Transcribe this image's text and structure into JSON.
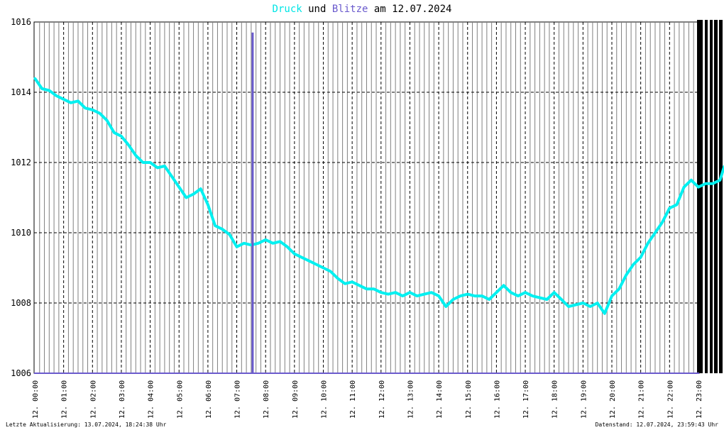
{
  "title": {
    "part1": "Druck",
    "part2": " und ",
    "part3": "Blitze",
    "part4": " am 12.07.2024"
  },
  "colors": {
    "druck": "#00f0f0",
    "blitze": "#6a5acd",
    "grid": "#000000"
  },
  "footer": {
    "left": "Letzte Aktualisierung: 13.07.2024, 18:24:38 Uhr",
    "right": "Datenstand: 12.07.2024, 23:59:43 Uhr"
  },
  "chart_data": {
    "type": "line",
    "title": "Druck und Blitze am 12.07.2024",
    "xlabel": "",
    "ylabel": "",
    "ylim": [
      1006,
      1016
    ],
    "xlim_hours": [
      0,
      24
    ],
    "y_ticks": [
      "1006",
      "1008",
      "1010",
      "1012",
      "1014",
      "1016"
    ],
    "x_ticks": [
      "12. 00:00",
      "12. 01:00",
      "12. 02:00",
      "12. 03:00",
      "12. 04:00",
      "12. 05:00",
      "12. 06:00",
      "12. 07:00",
      "12. 08:00",
      "12. 09:00",
      "12. 10:00",
      "12. 11:00",
      "12. 12:00",
      "12. 13:00",
      "12. 14:00",
      "12. 15:00",
      "12. 16:00",
      "12. 17:00",
      "12. 18:00",
      "12. 19:00",
      "12. 20:00",
      "12. 21:00",
      "12. 22:00",
      "12. 23:00"
    ],
    "grid": true,
    "series": [
      {
        "name": "Druck",
        "x": [
          0.0,
          0.25,
          0.5,
          0.75,
          1.0,
          1.25,
          1.5,
          1.75,
          2.0,
          2.25,
          2.5,
          2.75,
          3.0,
          3.25,
          3.5,
          3.75,
          4.0,
          4.25,
          4.5,
          4.75,
          5.0,
          5.25,
          5.5,
          5.75,
          6.0,
          6.25,
          6.5,
          6.75,
          7.0,
          7.25,
          7.5,
          7.75,
          8.0,
          8.25,
          8.5,
          8.75,
          9.0,
          9.25,
          9.5,
          9.75,
          10.0,
          10.25,
          10.5,
          10.75,
          11.0,
          11.25,
          11.5,
          11.75,
          12.0,
          12.25,
          12.5,
          12.75,
          13.0,
          13.25,
          13.5,
          13.75,
          14.0,
          14.25,
          14.5,
          14.75,
          15.0,
          15.25,
          15.5,
          15.75,
          16.0,
          16.25,
          16.5,
          16.75,
          17.0,
          17.25,
          17.5,
          17.75,
          18.0,
          18.25,
          18.5,
          18.75,
          19.0,
          19.25,
          19.5,
          19.75,
          20.0,
          20.25,
          20.5,
          20.75,
          21.0,
          21.25,
          21.5,
          21.75,
          22.0,
          22.25,
          22.5,
          22.75,
          23.0,
          23.25,
          23.5,
          23.75,
          23.9
        ],
        "y": [
          1014.4,
          1014.1,
          1014.05,
          1013.9,
          1013.8,
          1013.7,
          1013.75,
          1013.55,
          1013.5,
          1013.4,
          1013.2,
          1012.85,
          1012.75,
          1012.5,
          1012.2,
          1012.0,
          1012.0,
          1011.85,
          1011.9,
          1011.6,
          1011.3,
          1011.0,
          1011.1,
          1011.25,
          1010.8,
          1010.2,
          1010.1,
          1009.95,
          1009.6,
          1009.7,
          1009.65,
          1009.7,
          1009.8,
          1009.7,
          1009.75,
          1009.6,
          1009.4,
          1009.3,
          1009.2,
          1009.1,
          1009.0,
          1008.9,
          1008.7,
          1008.55,
          1008.6,
          1008.5,
          1008.4,
          1008.4,
          1008.3,
          1008.25,
          1008.3,
          1008.2,
          1008.3,
          1008.2,
          1008.25,
          1008.3,
          1008.2,
          1007.9,
          1008.1,
          1008.2,
          1008.25,
          1008.2,
          1008.2,
          1008.1,
          1008.3,
          1008.5,
          1008.3,
          1008.2,
          1008.3,
          1008.2,
          1008.15,
          1008.1,
          1008.3,
          1008.1,
          1007.9,
          1007.95,
          1008.0,
          1007.9,
          1008.0,
          1007.7,
          1008.2,
          1008.4,
          1008.8,
          1009.1,
          1009.3,
          1009.7,
          1010.0,
          1010.3,
          1010.7,
          1010.8,
          1011.3,
          1011.5,
          1011.3,
          1011.4,
          1011.4,
          1011.5,
          1011.9
        ]
      },
      {
        "name": "Blitze",
        "x": [
          7.55
        ],
        "y": [
          1015.7
        ]
      }
    ]
  }
}
